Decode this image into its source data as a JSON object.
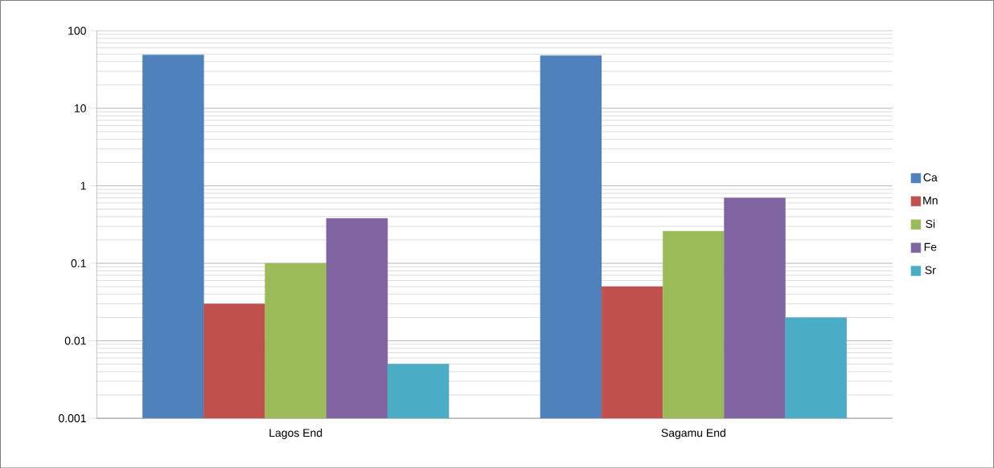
{
  "chart_data": {
    "type": "bar",
    "categories": [
      "Lagos End",
      "Sagamu End"
    ],
    "series": [
      {
        "name": "Ca",
        "color": "#4f81bd",
        "values": [
          49,
          48
        ]
      },
      {
        "name": "Mn",
        "color": "#c0504d",
        "values": [
          0.03,
          0.05
        ]
      },
      {
        "name": "Si",
        "color": "#9bbb59",
        "values": [
          0.1,
          0.26
        ]
      },
      {
        "name": "Fe",
        "color": "#8064a2",
        "values": [
          0.38,
          0.7
        ]
      },
      {
        "name": "Sr",
        "color": "#4bacc6",
        "values": [
          0.005,
          0.02
        ]
      }
    ],
    "log": true,
    "ylim": [
      0.001,
      100
    ],
    "yticks": [
      0.001,
      0.01,
      0.1,
      1,
      10,
      100
    ],
    "grid": "y",
    "legend": "right"
  }
}
